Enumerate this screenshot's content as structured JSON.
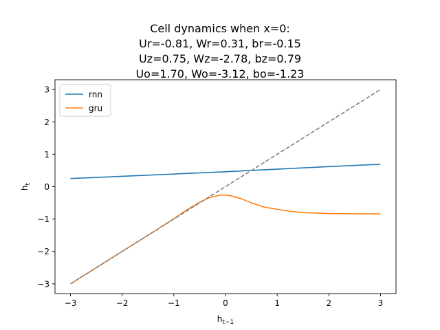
{
  "chart_data": {
    "type": "line",
    "title_lines": [
      "Cell dynamics when x=0:",
      "Ur=-0.81, Wr=0.31, br=-0.15",
      "Uz=0.75, Wz=-2.78, bz=0.79",
      "Uo=1.70, Wo=-3.12, bo=-1.23"
    ],
    "xlabel": "h_{t−1}",
    "ylabel": "h_t",
    "xlim": [
      -3.3,
      3.3
    ],
    "ylim": [
      -3.3,
      3.3
    ],
    "xticks": [
      -3,
      -2,
      -1,
      0,
      1,
      2,
      3
    ],
    "yticks": [
      -3,
      -2,
      -1,
      0,
      1,
      2,
      3
    ],
    "tick_labels_x": [
      "−3",
      "−2",
      "−1",
      "0",
      "1",
      "2",
      "3"
    ],
    "tick_labels_y": [
      "−3",
      "−2",
      "−1",
      "0",
      "1",
      "2",
      "3"
    ],
    "grid": false,
    "legend_position": "top-left",
    "series": [
      {
        "name": "rnn",
        "color": "#1f77b4",
        "style": "solid",
        "x": [
          -3,
          -2,
          -1,
          0,
          1,
          2,
          3
        ],
        "y": [
          0.25,
          0.32,
          0.39,
          0.46,
          0.54,
          0.62,
          0.69
        ]
      },
      {
        "name": "gru",
        "color": "#ff7f0e",
        "style": "solid",
        "x": [
          -3,
          -2.5,
          -2,
          -1.5,
          -1,
          -0.75,
          -0.5,
          -0.3,
          -0.1,
          0,
          0.1,
          0.3,
          0.5,
          0.75,
          1,
          1.25,
          1.5,
          2,
          2.5,
          3
        ],
        "y": [
          -3.0,
          -2.5,
          -2.0,
          -1.5,
          -0.99,
          -0.72,
          -0.48,
          -0.33,
          -0.26,
          -0.26,
          -0.28,
          -0.37,
          -0.5,
          -0.63,
          -0.7,
          -0.76,
          -0.8,
          -0.83,
          -0.84,
          -0.84
        ]
      },
      {
        "name": "",
        "color": "#808080",
        "style": "dashed",
        "x": [
          -3,
          3
        ],
        "y": [
          -3,
          3
        ]
      }
    ],
    "legend": [
      "rnn",
      "gru"
    ]
  }
}
